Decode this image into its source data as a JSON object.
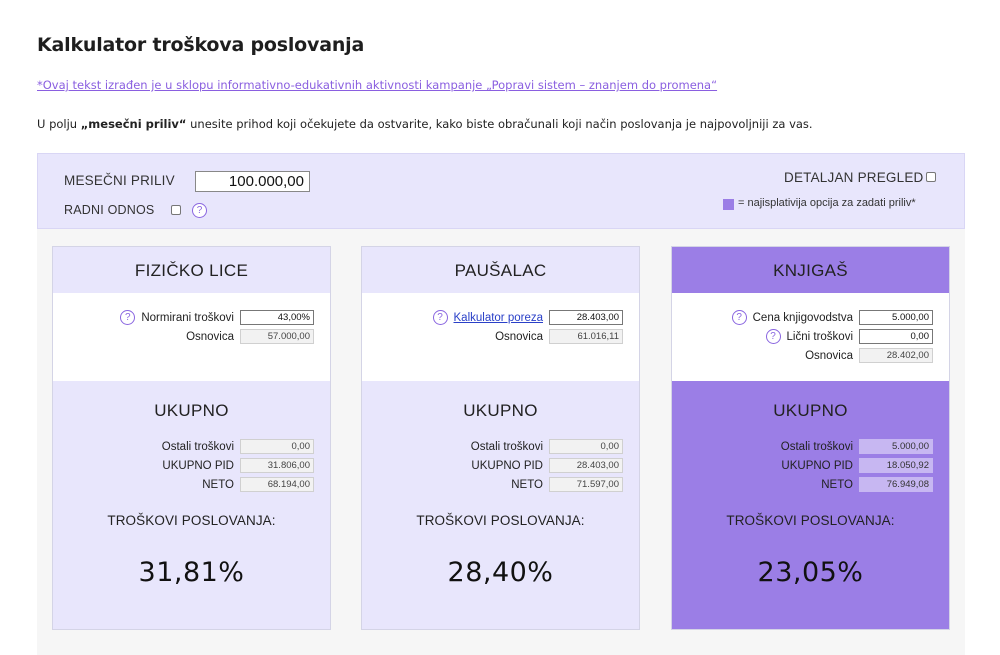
{
  "page": {
    "title": "Kalkulator troškova poslovanja",
    "disclaimer": "*Ovaj tekst izrađen je u sklopu informativno-edukativnih aktivnosti kampanje „Popravi sistem – znanjem do promena“",
    "intro_before": "U polju ",
    "intro_bold": "„mesečni priliv“",
    "intro_after": " unesite prihod koji očekujete da ostvarite, kako biste obračunali koji način poslovanja je najpovoljniji za vas."
  },
  "controls": {
    "income_label": "MESEČNI PRILIV",
    "income_value": "100.000,00",
    "employment_label": "RADNI ODNOS",
    "help_glyph": "?",
    "detail_label": "DETALJAN PREGLED",
    "legend_text": "= najisplativija opcija za zadati priliv*"
  },
  "cards": [
    {
      "title": "FIZIČKO LICE",
      "rows": [
        {
          "label": "Normirani troškovi",
          "value": "43,00%"
        },
        {
          "label": "Osnovica",
          "value": "57.000,00"
        }
      ],
      "total_title": "UKUPNO",
      "totals": [
        {
          "label": "Ostali troškovi",
          "value": "0,00"
        },
        {
          "label": "UKUPNO PID",
          "value": "31.806,00"
        },
        {
          "label": "NETO",
          "value": "68.194,00"
        }
      ],
      "costs_label": "TROŠKOVI POSLOVANJA:",
      "costs_pct": "31,81%"
    },
    {
      "title": "PAUŠALAC",
      "rows": [
        {
          "label": "Kalkulator poreza",
          "value": "28.403,00"
        },
        {
          "label": "Osnovica",
          "value": "61.016,11"
        }
      ],
      "total_title": "UKUPNO",
      "totals": [
        {
          "label": "Ostali troškovi",
          "value": "0,00"
        },
        {
          "label": "UKUPNO PID",
          "value": "28.403,00"
        },
        {
          "label": "NETO",
          "value": "71.597,00"
        }
      ],
      "costs_label": "TROŠKOVI POSLOVANJA:",
      "costs_pct": "28,40%"
    },
    {
      "title": "KNJIGAŠ",
      "rows": [
        {
          "label": "Cena knjigovodstva",
          "value": "5.000,00"
        },
        {
          "label": "Lični troškovi",
          "value": "0,00"
        },
        {
          "label": "Osnovica",
          "value": "28.402,00"
        }
      ],
      "total_title": "UKUPNO",
      "totals": [
        {
          "label": "Ostali troškovi",
          "value": "5.000,00"
        },
        {
          "label": "UKUPNO PID",
          "value": "18.050,92"
        },
        {
          "label": "NETO",
          "value": "76.949,08"
        }
      ],
      "costs_label": "TROŠKOVI POSLOVANJA:",
      "costs_pct": "23,05%"
    }
  ],
  "colors": {
    "accent": "#9b7ee6",
    "panel": "#e8e6fc"
  }
}
